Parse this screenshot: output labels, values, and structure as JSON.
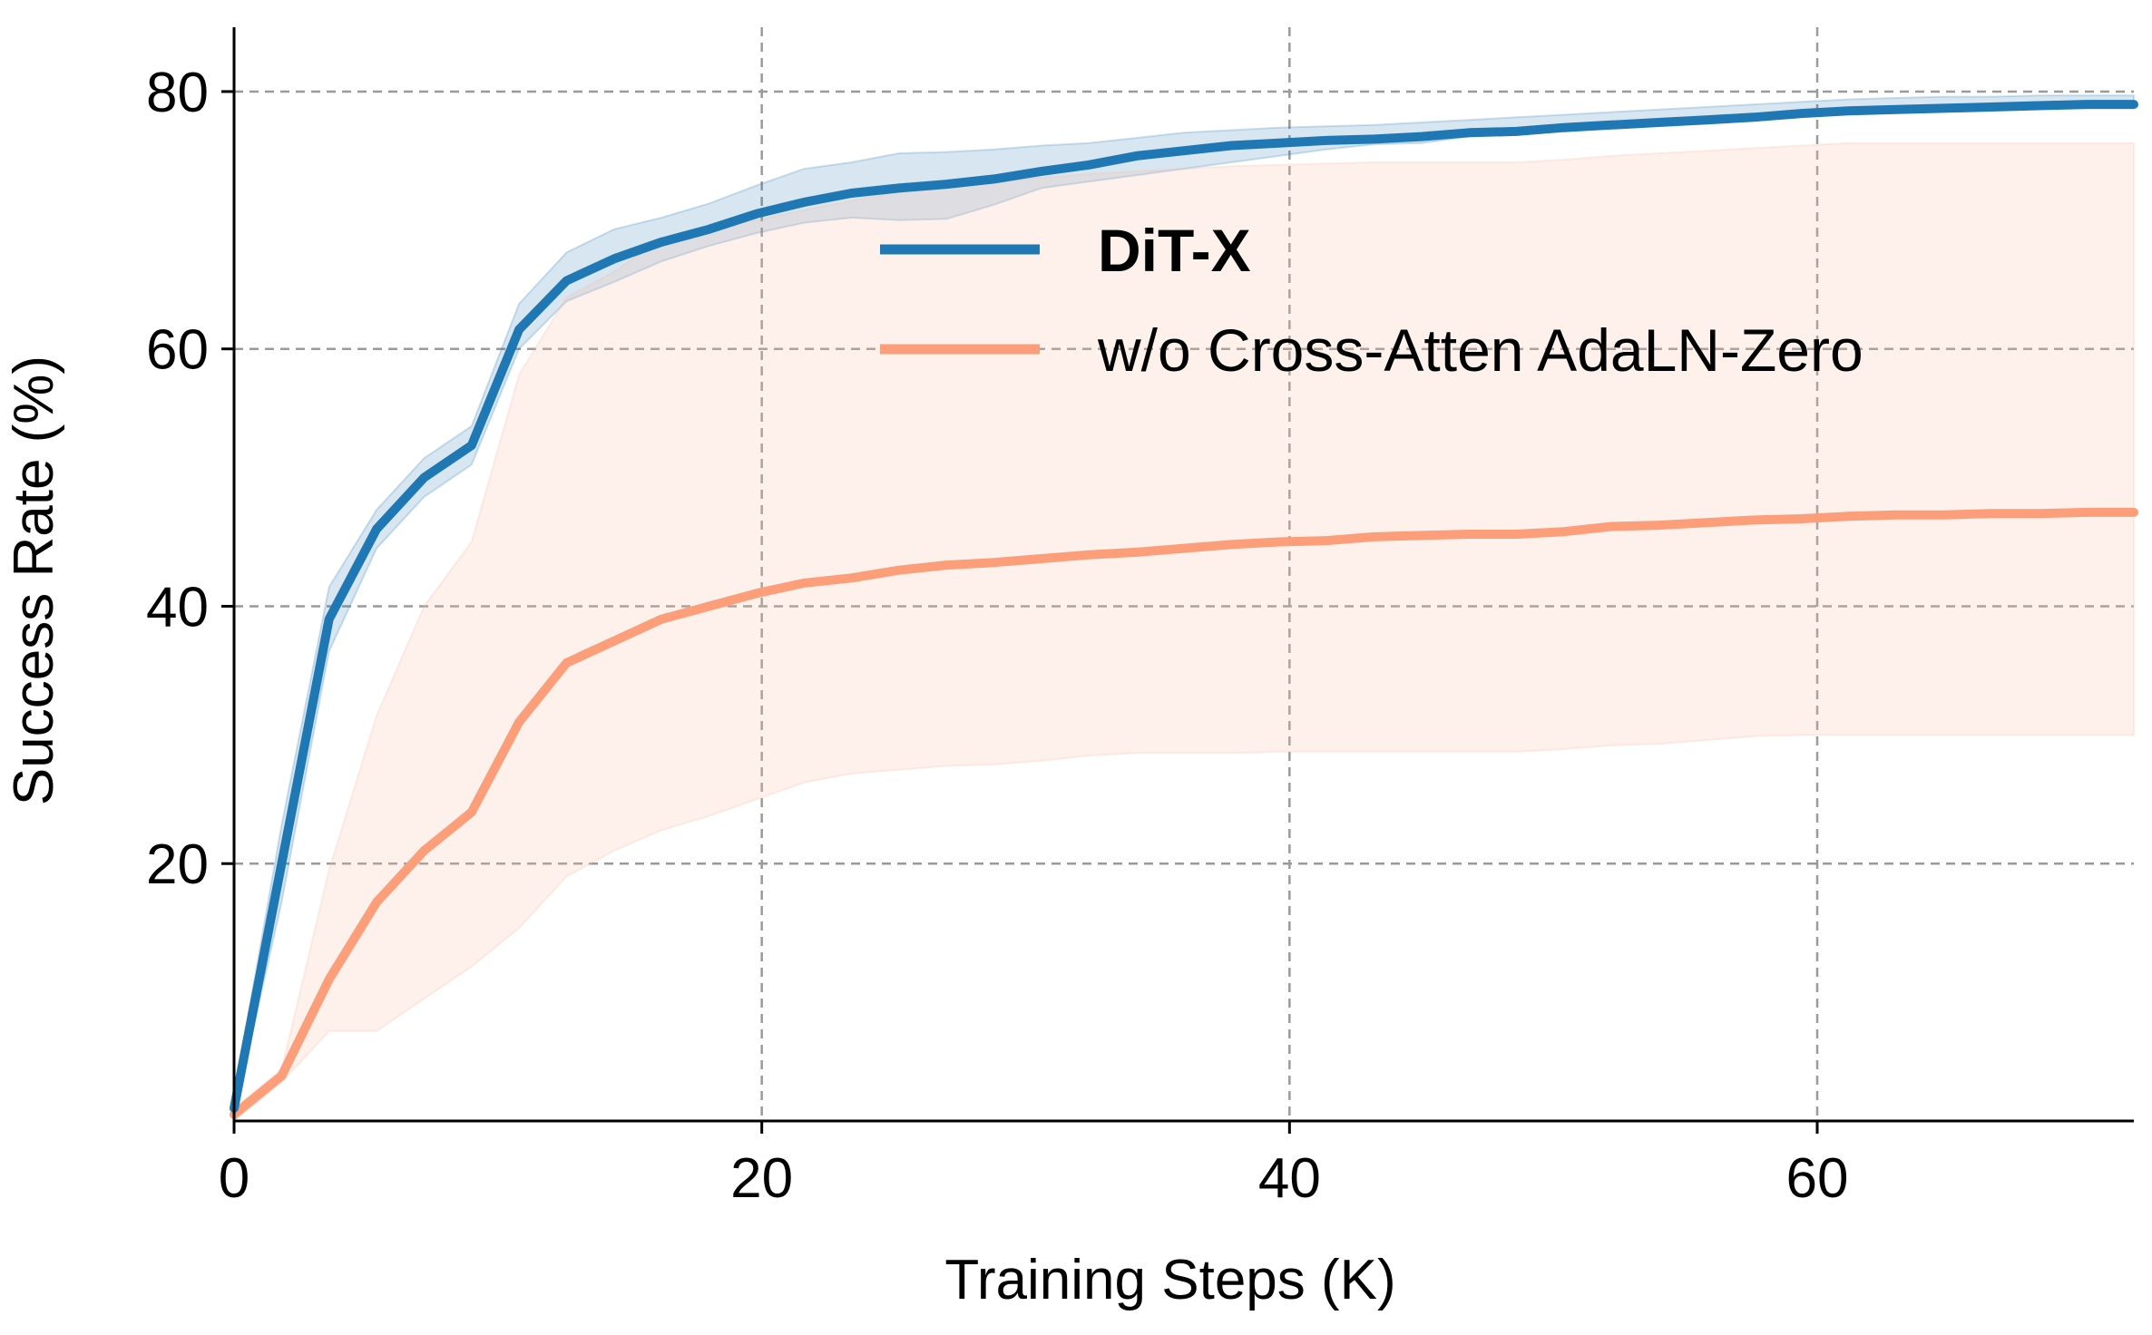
{
  "chart_data": {
    "type": "line",
    "xlabel": "Training Steps (K)",
    "ylabel": "Success Rate (%)",
    "xlim": [
      0,
      72
    ],
    "ylim": [
      0,
      85
    ],
    "grid": true,
    "legend_position": "upper-center",
    "x_ticks": [
      0,
      20,
      40,
      60
    ],
    "x_tick_labels": [
      "0",
      "20",
      "40",
      "60"
    ],
    "y_ticks": [
      20,
      40,
      60,
      80
    ],
    "y_tick_labels": [
      "20",
      "40",
      "60",
      "80"
    ],
    "series": [
      {
        "name": "DiT-X",
        "color": "#1f77b4",
        "band_color": "#1f77b4",
        "bold_label": true,
        "x": [
          0,
          1.8,
          3.6,
          5.4,
          7.2,
          9.0,
          10.8,
          12.6,
          14.4,
          16.2,
          18.0,
          19.8,
          21.6,
          23.4,
          25.2,
          27.0,
          28.8,
          30.6,
          32.4,
          34.2,
          36.0,
          37.8,
          39.6,
          41.4,
          43.2,
          45.0,
          46.8,
          48.6,
          50.4,
          52.2,
          54.0,
          55.8,
          57.6,
          59.4,
          61.2,
          63.0,
          64.8,
          66.6,
          68.4,
          70.2,
          72.0
        ],
        "values": [
          1,
          20,
          39,
          46,
          50,
          52.5,
          61.5,
          65.3,
          67,
          68.3,
          69.3,
          70.5,
          71.4,
          72.1,
          72.5,
          72.8,
          73.2,
          73.8,
          74.3,
          75.0,
          75.4,
          75.8,
          76.0,
          76.2,
          76.3,
          76.5,
          76.8,
          76.9,
          77.2,
          77.4,
          77.6,
          77.8,
          78.0,
          78.3,
          78.5,
          78.6,
          78.7,
          78.8,
          78.9,
          79.0,
          79.0
        ],
        "lower": [
          0.5,
          17,
          36.5,
          44.5,
          48.5,
          51,
          60,
          63.7,
          65.2,
          66.8,
          68.0,
          69.0,
          69.8,
          70.2,
          70.0,
          70.1,
          71.2,
          72.5,
          73.0,
          73.5,
          74.0,
          74.5,
          75.0,
          75.5,
          75.9,
          76.0,
          76.5,
          76.7,
          77.0,
          77.2,
          77.4,
          77.6,
          77.8,
          78.1,
          78.3,
          78.4,
          78.5,
          78.6,
          78.7,
          78.7,
          78.7
        ],
        "upper": [
          2,
          23,
          41.5,
          47.5,
          51.5,
          54,
          63.5,
          67.5,
          69.3,
          70.2,
          71.3,
          72.7,
          74.0,
          74.5,
          75.2,
          75.3,
          75.5,
          75.8,
          76.0,
          76.4,
          76.8,
          77.0,
          77.2,
          77.3,
          77.4,
          77.6,
          77.8,
          78.0,
          78.2,
          78.4,
          78.6,
          78.8,
          79.0,
          79.2,
          79.4,
          79.5,
          79.6,
          79.6,
          79.7,
          79.7,
          79.7
        ]
      },
      {
        "name": "w/o Cross-Atten AdaLN-Zero",
        "color": "#fc9e79",
        "band_color": "#fcbfa8",
        "bold_label": false,
        "x": [
          0,
          1.8,
          3.6,
          5.4,
          7.2,
          9.0,
          10.8,
          12.6,
          14.4,
          16.2,
          18.0,
          19.8,
          21.6,
          23.4,
          25.2,
          27.0,
          28.8,
          30.6,
          32.4,
          34.2,
          36.0,
          37.8,
          39.6,
          41.4,
          43.2,
          45.0,
          46.8,
          48.6,
          50.4,
          52.2,
          54.0,
          55.8,
          57.6,
          59.4,
          61.2,
          63.0,
          64.8,
          66.6,
          68.4,
          70.2,
          72.0
        ],
        "values": [
          0.5,
          3.5,
          11,
          17,
          21,
          24,
          31,
          35.6,
          37.3,
          39,
          40,
          41,
          41.8,
          42.2,
          42.8,
          43.2,
          43.4,
          43.7,
          44.0,
          44.2,
          44.5,
          44.8,
          45.0,
          45.1,
          45.4,
          45.5,
          45.6,
          45.6,
          45.8,
          46.2,
          46.3,
          46.5,
          46.7,
          46.8,
          47.0,
          47.1,
          47.1,
          47.2,
          47.2,
          47.3,
          47.3
        ],
        "lower": [
          0,
          3,
          7,
          7,
          9.5,
          12,
          15,
          19,
          21,
          22.6,
          23.7,
          25,
          26.3,
          27.0,
          27.3,
          27.6,
          27.7,
          28.0,
          28.4,
          28.6,
          28.6,
          28.6,
          28.7,
          28.7,
          28.7,
          28.7,
          28.7,
          28.7,
          28.9,
          29.2,
          29.3,
          29.6,
          29.9,
          30.0,
          30.0,
          30.0,
          30.0,
          30.0,
          30.0,
          30.0,
          30.0
        ],
        "upper": [
          1,
          4,
          19.5,
          31.5,
          40,
          45,
          58,
          64,
          66,
          68.5,
          69.5,
          70,
          70.8,
          71.5,
          72.2,
          72.7,
          73.0,
          73.3,
          73.6,
          73.8,
          74.0,
          74.2,
          74.3,
          74.4,
          74.5,
          74.5,
          74.5,
          74.5,
          74.7,
          75.0,
          75.2,
          75.4,
          75.6,
          75.8,
          76.0,
          76.0,
          76.0,
          76.0,
          76.0,
          76.0,
          76.0
        ]
      }
    ]
  }
}
